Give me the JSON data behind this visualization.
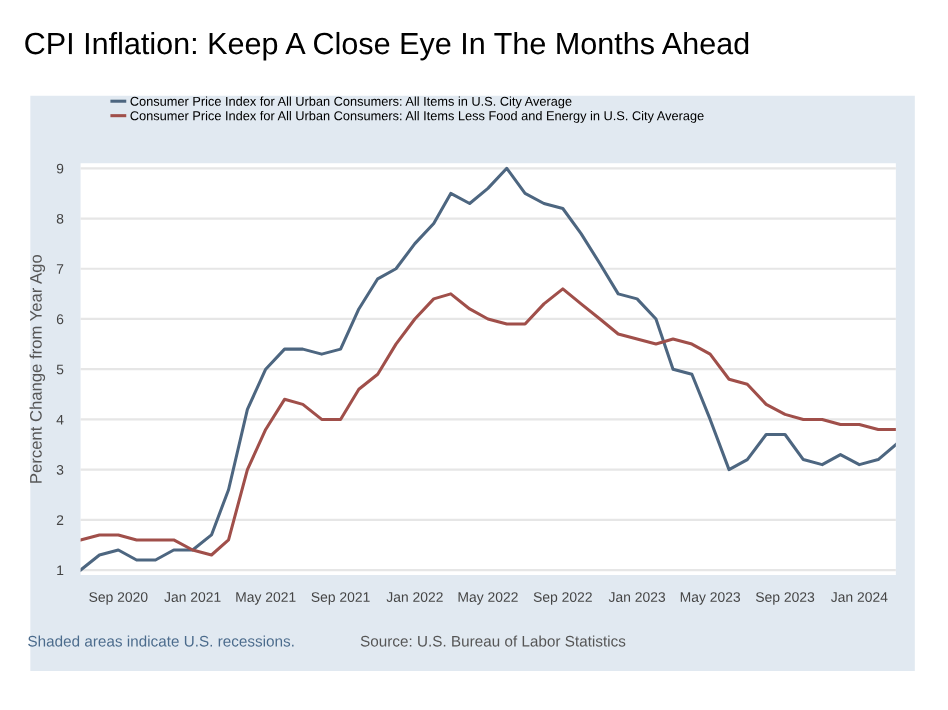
{
  "chart_data": {
    "type": "line",
    "title": "CPI Inflation: Keep A Close Eye In The Months Ahead",
    "ylabel": "Percent Change from Year Ago",
    "x": [
      "2020-07",
      "2020-08",
      "2020-09",
      "2020-10",
      "2020-11",
      "2020-12",
      "2021-01",
      "2021-02",
      "2021-03",
      "2021-04",
      "2021-05",
      "2021-06",
      "2021-07",
      "2021-08",
      "2021-09",
      "2021-10",
      "2021-11",
      "2021-12",
      "2022-01",
      "2022-02",
      "2022-03",
      "2022-04",
      "2022-05",
      "2022-06",
      "2022-07",
      "2022-08",
      "2022-09",
      "2022-10",
      "2022-11",
      "2022-12",
      "2023-01",
      "2023-02",
      "2023-03",
      "2023-04",
      "2023-05",
      "2023-06",
      "2023-07",
      "2023-08",
      "2023-09",
      "2023-10",
      "2023-11",
      "2023-12",
      "2024-01",
      "2024-02",
      "2024-03"
    ],
    "series": [
      {
        "name": "Consumer Price Index for All Urban Consumers: All Items in U.S. City Average",
        "color": "#4d6680",
        "values": [
          1.0,
          1.3,
          1.4,
          1.2,
          1.2,
          1.4,
          1.4,
          1.7,
          2.6,
          4.2,
          5.0,
          5.4,
          5.4,
          5.3,
          5.4,
          6.2,
          6.8,
          7.0,
          7.5,
          7.9,
          8.5,
          8.3,
          8.6,
          9.0,
          8.5,
          8.3,
          8.2,
          7.7,
          7.1,
          6.5,
          6.4,
          6.0,
          5.0,
          4.9,
          4.0,
          3.0,
          3.2,
          3.7,
          3.7,
          3.2,
          3.1,
          3.3,
          3.1,
          3.2,
          3.5
        ]
      },
      {
        "name": "Consumer Price Index for All Urban Consumers: All Items Less Food and Energy in U.S. City Average",
        "color": "#a04f4a",
        "values": [
          1.6,
          1.7,
          1.7,
          1.6,
          1.6,
          1.6,
          1.4,
          1.3,
          1.6,
          3.0,
          3.8,
          4.4,
          4.3,
          4.0,
          4.0,
          4.6,
          4.9,
          5.5,
          6.0,
          6.4,
          6.5,
          6.2,
          6.0,
          5.9,
          5.9,
          6.3,
          6.6,
          6.3,
          6.0,
          5.7,
          5.6,
          5.5,
          5.6,
          5.5,
          5.3,
          4.8,
          4.7,
          4.3,
          4.1,
          4.0,
          4.0,
          3.9,
          3.9,
          3.8,
          3.8
        ]
      }
    ],
    "xlim": [
      "2020-07",
      "2024-03"
    ],
    "xticks": [
      {
        "value": "2020-09",
        "label": "Sep 2020"
      },
      {
        "value": "2021-01",
        "label": "Jan 2021"
      },
      {
        "value": "2021-05",
        "label": "May 2021"
      },
      {
        "value": "2021-09",
        "label": "Sep 2021"
      },
      {
        "value": "2022-01",
        "label": "Jan 2022"
      },
      {
        "value": "2022-05",
        "label": "May 2022"
      },
      {
        "value": "2022-09",
        "label": "Sep 2022"
      },
      {
        "value": "2023-01",
        "label": "Jan 2023"
      },
      {
        "value": "2023-05",
        "label": "May 2023"
      },
      {
        "value": "2023-09",
        "label": "Sep 2023"
      },
      {
        "value": "2024-01",
        "label": "Jan 2024"
      }
    ],
    "ylim": [
      0.9,
      9.1
    ],
    "yticks": [
      1,
      2,
      3,
      4,
      5,
      6,
      7,
      8,
      9
    ],
    "grid": "y",
    "legend": "top left",
    "marker": "none",
    "line_style": "solid",
    "annotations": [
      "Shaded areas indicate U.S. recessions.",
      "Source: U.S. Bureau of Labor Statistics"
    ]
  }
}
